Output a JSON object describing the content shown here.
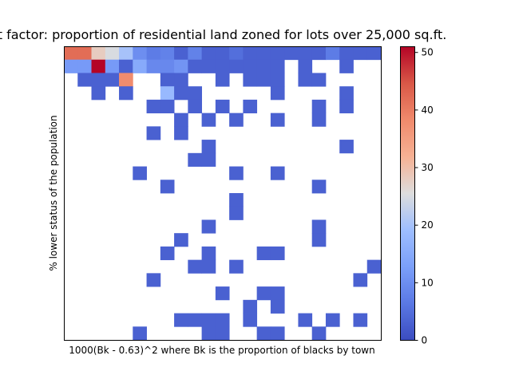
{
  "chart_data": {
    "type": "heatmap",
    "title": "t factor: proportion of residential land zoned for lots over 25,000 sq.ft.",
    "xlabel": "1000(Bk - 0.63)^2 where Bk is the proportion of blacks by town",
    "ylabel": "% lower status of the population",
    "x_ticks_shown": false,
    "y_ticks_shown": false,
    "grid": false,
    "nx": 23,
    "ny": 22,
    "colormap": "coolwarm",
    "empty_cells": "white",
    "colorbar": {
      "min": 0,
      "max": 51,
      "ticks": [
        0,
        10,
        20,
        30,
        40,
        50
      ],
      "tick_labels": [
        "0",
        "10",
        "20",
        "30",
        "40",
        "50"
      ]
    },
    "grid_values": [
      [
        42,
        42,
        28,
        25,
        20,
        10,
        7,
        8,
        3,
        8,
        3,
        3,
        5,
        3,
        3,
        3,
        3,
        3,
        3,
        7,
        3,
        3,
        3
      ],
      [
        12,
        12,
        51,
        12,
        3,
        15,
        9,
        9,
        11,
        3,
        3,
        3,
        3,
        3,
        3,
        3,
        null,
        3,
        null,
        null,
        3,
        null,
        null
      ],
      [
        null,
        3,
        3,
        3,
        38,
        null,
        null,
        3,
        3,
        null,
        null,
        3,
        null,
        3,
        3,
        3,
        null,
        3,
        3,
        null,
        null,
        null,
        null
      ],
      [
        null,
        null,
        3,
        null,
        3,
        null,
        null,
        18,
        3,
        3,
        null,
        null,
        null,
        null,
        null,
        3,
        null,
        null,
        null,
        null,
        3,
        null,
        null
      ],
      [
        null,
        null,
        null,
        null,
        null,
        null,
        3,
        3,
        null,
        3,
        null,
        3,
        null,
        3,
        null,
        null,
        null,
        null,
        3,
        null,
        3,
        null,
        null
      ],
      [
        null,
        null,
        null,
        null,
        null,
        null,
        null,
        null,
        3,
        null,
        3,
        null,
        3,
        null,
        null,
        3,
        null,
        null,
        3,
        null,
        null,
        null,
        null
      ],
      [
        null,
        null,
        null,
        null,
        null,
        null,
        3,
        null,
        3,
        null,
        null,
        null,
        null,
        null,
        null,
        null,
        null,
        null,
        null,
        null,
        null,
        null,
        null
      ],
      [
        null,
        null,
        null,
        null,
        null,
        null,
        null,
        null,
        null,
        null,
        3,
        null,
        null,
        null,
        null,
        null,
        null,
        null,
        null,
        null,
        3,
        null,
        null
      ],
      [
        null,
        null,
        null,
        null,
        null,
        null,
        null,
        null,
        null,
        3,
        3,
        null,
        null,
        null,
        null,
        null,
        null,
        null,
        null,
        null,
        null,
        null,
        null
      ],
      [
        null,
        null,
        null,
        null,
        null,
        3,
        null,
        null,
        null,
        null,
        null,
        null,
        3,
        null,
        null,
        3,
        null,
        null,
        null,
        null,
        null,
        null,
        null
      ],
      [
        null,
        null,
        null,
        null,
        null,
        null,
        null,
        3,
        null,
        null,
        null,
        null,
        null,
        null,
        null,
        null,
        null,
        null,
        3,
        null,
        null,
        null,
        null
      ],
      [
        null,
        null,
        null,
        null,
        null,
        null,
        null,
        null,
        null,
        null,
        null,
        null,
        3,
        null,
        null,
        null,
        null,
        null,
        null,
        null,
        null,
        null,
        null
      ],
      [
        null,
        null,
        null,
        null,
        null,
        null,
        null,
        null,
        null,
        null,
        null,
        null,
        3,
        null,
        null,
        null,
        null,
        null,
        null,
        null,
        null,
        null,
        null
      ],
      [
        null,
        null,
        null,
        null,
        null,
        null,
        null,
        null,
        null,
        null,
        3,
        null,
        null,
        null,
        null,
        null,
        null,
        null,
        3,
        null,
        null,
        null,
        null
      ],
      [
        null,
        null,
        null,
        null,
        null,
        null,
        null,
        null,
        3,
        null,
        null,
        null,
        null,
        null,
        null,
        null,
        null,
        null,
        3,
        null,
        null,
        null,
        null
      ],
      [
        null,
        null,
        null,
        null,
        null,
        null,
        null,
        3,
        null,
        null,
        3,
        null,
        null,
        null,
        3,
        3,
        null,
        null,
        null,
        null,
        null,
        null,
        null
      ],
      [
        null,
        null,
        null,
        null,
        null,
        null,
        null,
        null,
        null,
        3,
        3,
        null,
        3,
        null,
        null,
        null,
        null,
        null,
        null,
        null,
        null,
        null,
        3
      ],
      [
        null,
        null,
        null,
        null,
        null,
        null,
        3,
        null,
        null,
        null,
        null,
        null,
        null,
        null,
        null,
        null,
        null,
        null,
        null,
        null,
        null,
        3,
        null
      ],
      [
        null,
        null,
        null,
        null,
        null,
        null,
        null,
        null,
        null,
        null,
        null,
        3,
        null,
        null,
        3,
        3,
        null,
        null,
        null,
        null,
        null,
        null,
        null
      ],
      [
        null,
        null,
        null,
        null,
        null,
        null,
        null,
        null,
        null,
        null,
        null,
        null,
        null,
        3,
        null,
        3,
        null,
        null,
        null,
        null,
        null,
        null,
        null
      ],
      [
        null,
        null,
        null,
        null,
        null,
        null,
        null,
        null,
        3,
        3,
        3,
        3,
        null,
        3,
        null,
        null,
        null,
        3,
        null,
        3,
        null,
        3,
        null
      ],
      [
        null,
        null,
        null,
        null,
        null,
        3,
        null,
        null,
        null,
        null,
        3,
        3,
        null,
        null,
        3,
        3,
        null,
        null,
        3,
        null,
        null,
        null,
        null
      ]
    ]
  }
}
